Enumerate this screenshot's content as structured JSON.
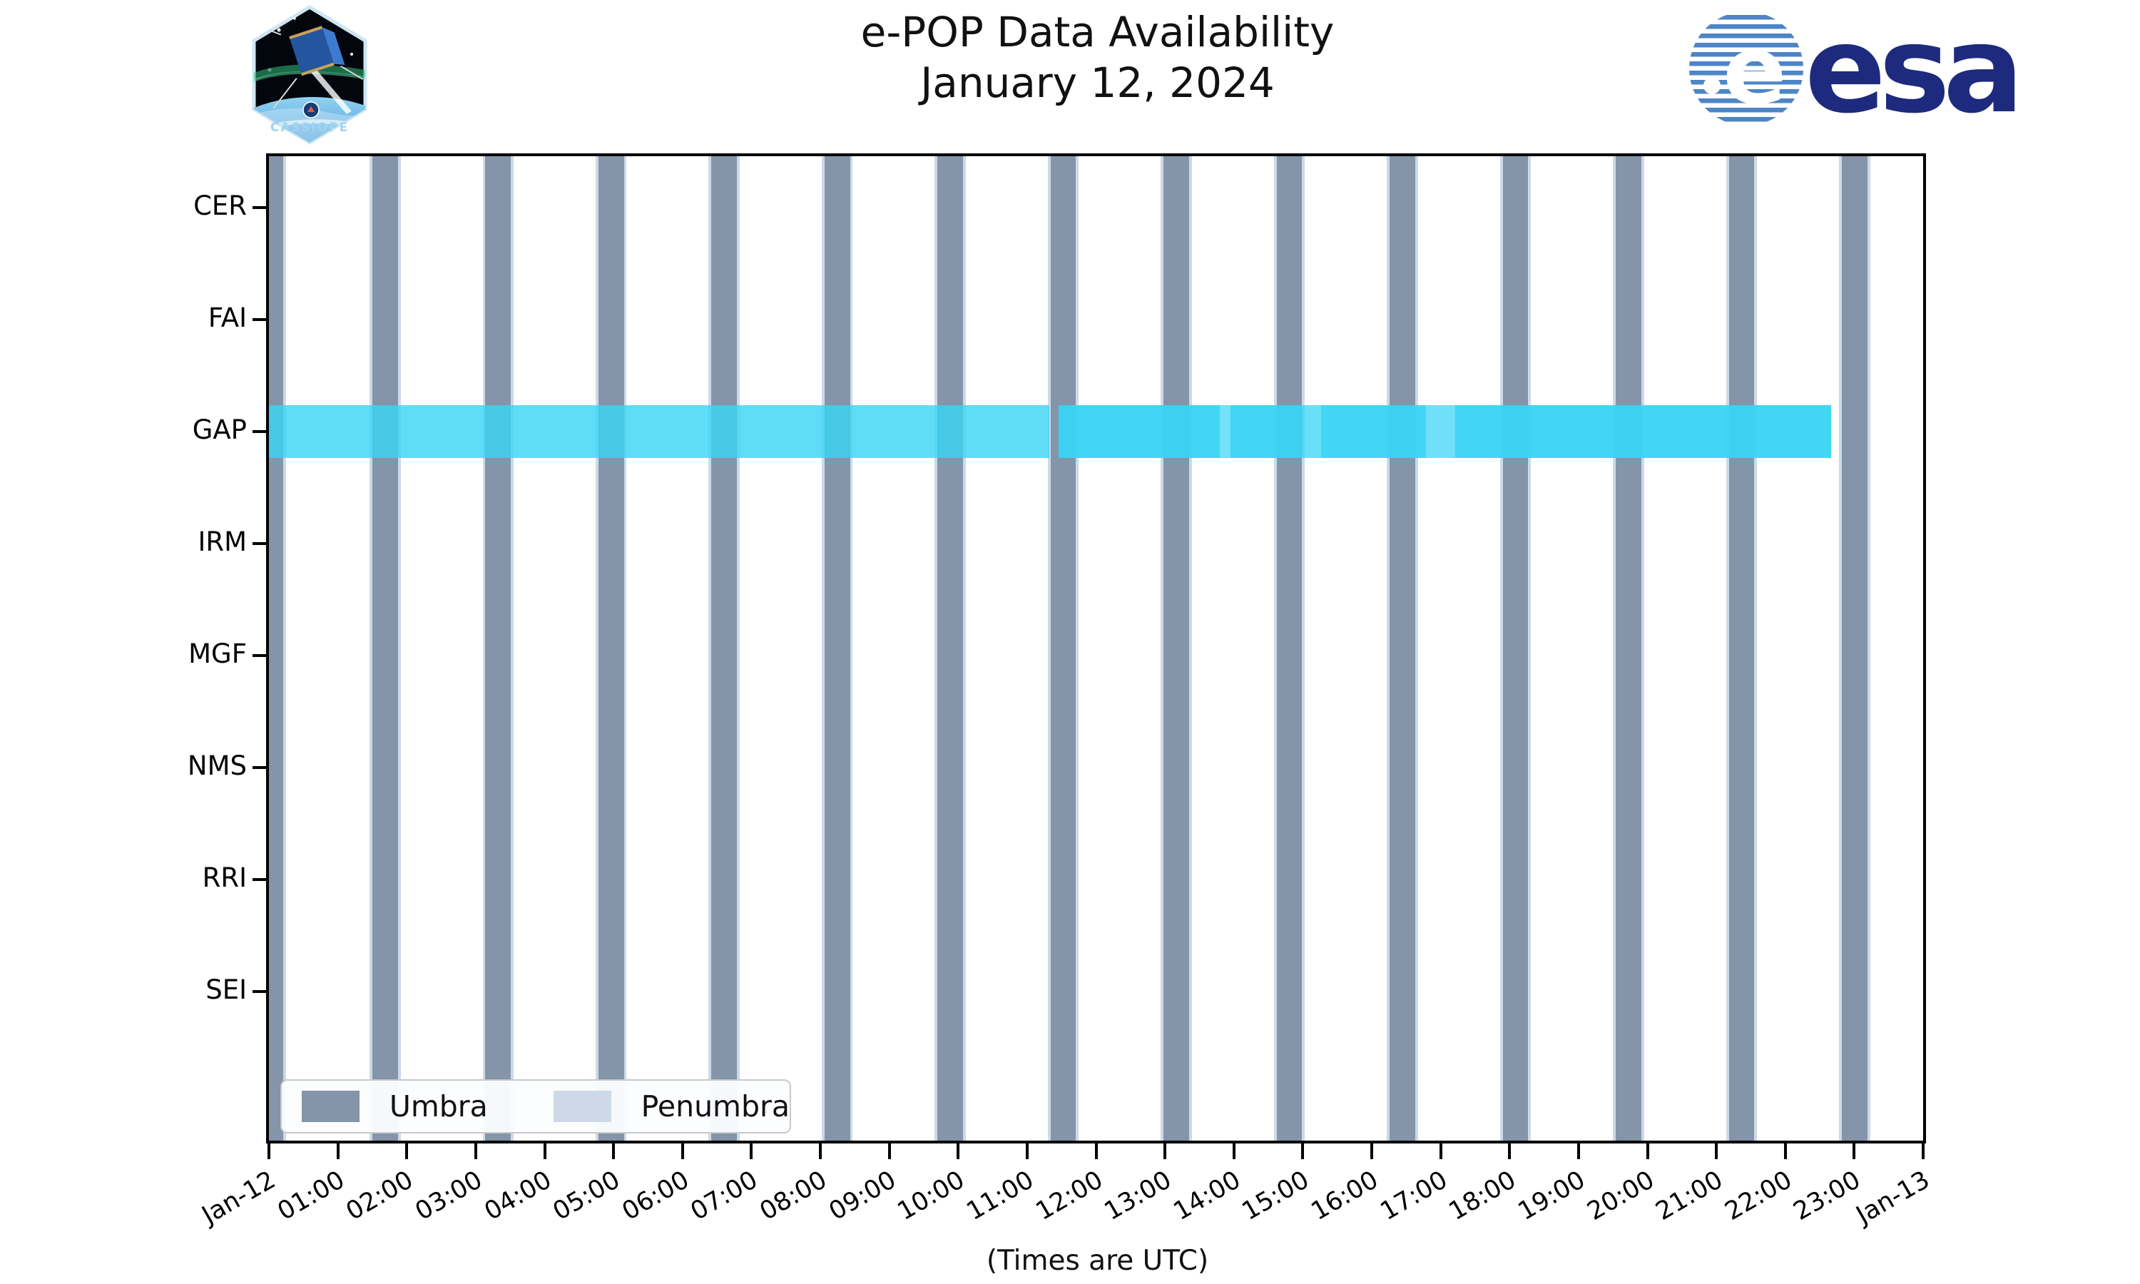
{
  "header": {
    "title_line1": "e-POP Data Availability",
    "title_line2": "January 12, 2024",
    "cassiope_patch_text": "CASSIOPE",
    "esa_wordmark": "esa"
  },
  "chart_data": {
    "type": "timeline-availability",
    "title": "e-POP Data Availability January 12, 2024",
    "x_axis": {
      "caption": "(Times are UTC)",
      "range_hours": [
        0,
        24
      ],
      "tick_labels": [
        "Jan-12",
        "01:00",
        "02:00",
        "03:00",
        "04:00",
        "05:00",
        "06:00",
        "07:00",
        "08:00",
        "09:00",
        "10:00",
        "11:00",
        "12:00",
        "13:00",
        "14:00",
        "15:00",
        "16:00",
        "17:00",
        "18:00",
        "19:00",
        "20:00",
        "21:00",
        "22:00",
        "23:00",
        "Jan-13"
      ]
    },
    "y_axis": {
      "instruments": [
        "CER",
        "FAI",
        "GAP",
        "IRM",
        "MGF",
        "NMS",
        "RRI",
        "SEI"
      ]
    },
    "legend": [
      {
        "label": "Umbra",
        "color": "#8494a9"
      },
      {
        "label": "Penumbra",
        "color": "#cdd9e6"
      }
    ],
    "umbra_windows_hours": [
      {
        "start": 0.0,
        "end": 0.21
      },
      {
        "start": 1.5,
        "end": 1.87
      },
      {
        "start": 3.14,
        "end": 3.51
      },
      {
        "start": 4.78,
        "end": 5.15
      },
      {
        "start": 6.42,
        "end": 6.79
      },
      {
        "start": 8.06,
        "end": 8.43
      },
      {
        "start": 9.7,
        "end": 10.07
      },
      {
        "start": 11.34,
        "end": 11.71
      },
      {
        "start": 12.98,
        "end": 13.35
      },
      {
        "start": 14.62,
        "end": 14.99
      },
      {
        "start": 16.26,
        "end": 16.63
      },
      {
        "start": 17.9,
        "end": 18.27
      },
      {
        "start": 19.54,
        "end": 19.91
      },
      {
        "start": 21.18,
        "end": 21.55
      },
      {
        "start": 22.82,
        "end": 23.19
      }
    ],
    "penumbra_edge_width_hours": 0.04,
    "gap_availability_segments": [
      {
        "instrument": "GAP",
        "start": 0.0,
        "end": 11.32,
        "opacity": 0.8
      },
      {
        "instrument": "GAP",
        "start": 11.46,
        "end": 13.8,
        "opacity": 0.95
      },
      {
        "instrument": "GAP",
        "start": 13.8,
        "end": 13.95,
        "opacity": 0.7
      },
      {
        "instrument": "GAP",
        "start": 13.95,
        "end": 15.0,
        "opacity": 0.95
      },
      {
        "instrument": "GAP",
        "start": 15.0,
        "end": 15.27,
        "opacity": 0.75
      },
      {
        "instrument": "GAP",
        "start": 15.27,
        "end": 16.79,
        "opacity": 0.95
      },
      {
        "instrument": "GAP",
        "start": 16.79,
        "end": 17.21,
        "opacity": 0.72
      },
      {
        "instrument": "GAP",
        "start": 17.21,
        "end": 22.67,
        "opacity": 0.95
      }
    ],
    "colors": {
      "umbra": "#8494a9",
      "penumbra": "#cdd9e6",
      "gap_band_rgb": "56,212,244",
      "axis": "#000000",
      "esa_navy": "#1e2a7d",
      "esa_stripe": "#4d85c6",
      "cassiope_text": "#9fd4f2"
    }
  }
}
